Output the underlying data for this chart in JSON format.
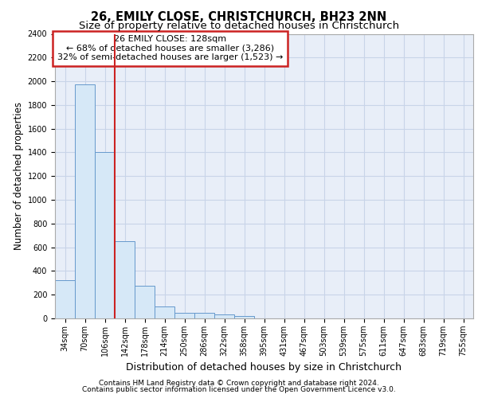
{
  "title1": "26, EMILY CLOSE, CHRISTCHURCH, BH23 2NN",
  "title2": "Size of property relative to detached houses in Christchurch",
  "xlabel": "Distribution of detached houses by size in Christchurch",
  "ylabel": "Number of detached properties",
  "footer1": "Contains HM Land Registry data © Crown copyright and database right 2024.",
  "footer2": "Contains public sector information licensed under the Open Government Licence v3.0.",
  "categories": [
    "34sqm",
    "70sqm",
    "106sqm",
    "142sqm",
    "178sqm",
    "214sqm",
    "250sqm",
    "286sqm",
    "322sqm",
    "358sqm",
    "395sqm",
    "431sqm",
    "467sqm",
    "503sqm",
    "539sqm",
    "575sqm",
    "611sqm",
    "647sqm",
    "683sqm",
    "719sqm",
    "755sqm"
  ],
  "bar_values": [
    325,
    1975,
    1400,
    650,
    275,
    100,
    50,
    45,
    35,
    20,
    0,
    0,
    0,
    0,
    0,
    0,
    0,
    0,
    0,
    0,
    0
  ],
  "bar_color": "#d6e8f7",
  "bar_edge_color": "#6699cc",
  "bar_width": 1.0,
  "ylim": [
    0,
    2400
  ],
  "yticks": [
    0,
    200,
    400,
    600,
    800,
    1000,
    1200,
    1400,
    1600,
    1800,
    2000,
    2200,
    2400
  ],
  "annotation_line1": "26 EMILY CLOSE: 128sqm",
  "annotation_line2": "← 68% of detached houses are smaller (3,286)",
  "annotation_line3": "32% of semi-detached houses are larger (1,523) →",
  "vline_color": "#cc2222",
  "annotation_box_edge_color": "#cc2222",
  "grid_color": "#c8d4e8",
  "background_color": "#e8eef8",
  "title1_fontsize": 10.5,
  "title2_fontsize": 9.5,
  "tick_label_fontsize": 7,
  "ylabel_fontsize": 8.5,
  "xlabel_fontsize": 9,
  "annotation_fontsize": 8,
  "footer_fontsize": 6.5
}
